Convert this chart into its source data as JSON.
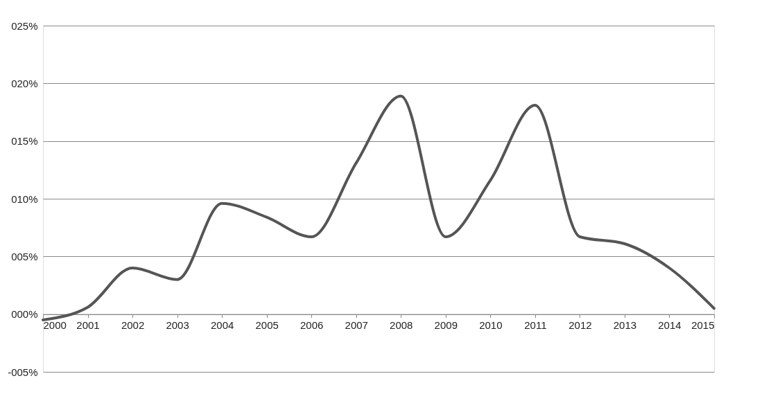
{
  "chart_data": {
    "type": "line",
    "x": [
      2000,
      2001,
      2002,
      2003,
      2004,
      2005,
      2006,
      2007,
      2008,
      2009,
      2010,
      2011,
      2012,
      2013,
      2014,
      2015
    ],
    "series": [
      {
        "color": "#555555",
        "values": [
          -0.005,
          0.006,
          0.04,
          0.03,
          0.096,
          0.084,
          0.067,
          0.131,
          0.189,
          0.067,
          0.116,
          0.181,
          0.067,
          0.061,
          0.04,
          0.005
        ]
      }
    ],
    "xlim": [
      2000,
      2015
    ],
    "xticks": [
      2000,
      2001,
      2002,
      2003,
      2004,
      2005,
      2006,
      2007,
      2008,
      2009,
      2010,
      2011,
      2012,
      2013,
      2014,
      2015
    ],
    "ylim": [
      -0.05,
      0.25
    ],
    "yticks": [
      {
        "value": -0.05,
        "label": "-005%"
      },
      {
        "value": 0,
        "label": "000%"
      },
      {
        "value": 0.05,
        "label": "005%"
      },
      {
        "value": 0.1,
        "label": "010%"
      },
      {
        "value": 0.15,
        "label": "015%"
      },
      {
        "value": 0.2,
        "label": "020%"
      },
      {
        "value": 0.25,
        "label": "025%"
      }
    ],
    "grid": "y",
    "marker": "none",
    "line_style": "solid"
  }
}
